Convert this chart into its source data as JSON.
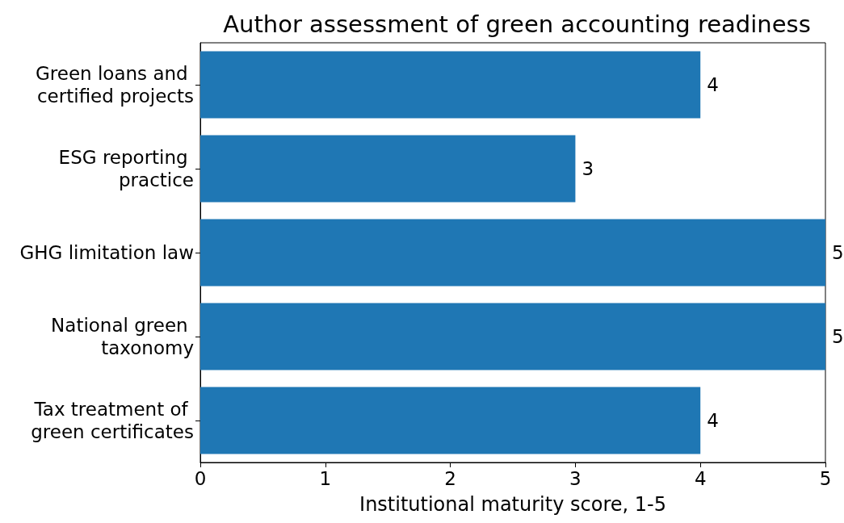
{
  "chart_data": {
    "type": "bar",
    "orientation": "horizontal",
    "title": "Author assessment of green accounting readiness",
    "xlabel": "Institutional maturity score, 1-5",
    "categories": [
      "Green loans and certified projects",
      "ESG reporting practice",
      "GHG limitation law",
      "National green taxonomy",
      "Tax treatment of green certificates"
    ],
    "values": [
      4,
      3,
      5,
      5,
      4
    ],
    "color": "#1f77b4",
    "xlim": [
      0,
      5
    ],
    "xticks": [
      0,
      1,
      2,
      3,
      4,
      5
    ],
    "data_labels": true
  }
}
